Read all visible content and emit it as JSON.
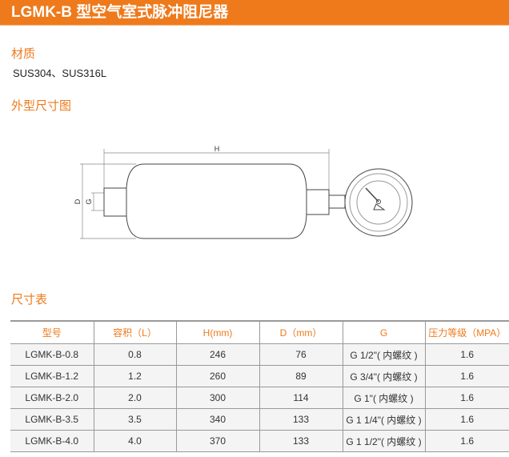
{
  "header": {
    "title": "LGMK-B 型空气室式脉冲阻尼器"
  },
  "material": {
    "heading": "材质",
    "value": "SUS304、SUS316L"
  },
  "drawing": {
    "heading": "外型尺寸图",
    "label_h": "H",
    "label_d": "D",
    "label_g": "G"
  },
  "table": {
    "heading": "尺寸表",
    "columns": [
      "型号",
      "容积（L）",
      "H(mm)",
      "D（mm）",
      "G",
      "压力等级（MPA）"
    ],
    "rows": [
      [
        "LGMK-B-0.8",
        "0.8",
        "246",
        "76",
        "G 1/2\"( 内螺纹 )",
        "1.6"
      ],
      [
        "LGMK-B-1.2",
        "1.2",
        "260",
        "89",
        "G 3/4\"( 内螺纹 )",
        "1.6"
      ],
      [
        "LGMK-B-2.0",
        "2.0",
        "300",
        "114",
        "G 1\"( 内螺纹 )",
        "1.6"
      ],
      [
        "LGMK-B-3.5",
        "3.5",
        "340",
        "133",
        "G 1 1/4\"( 内螺纹 )",
        "1.6"
      ],
      [
        "LGMK-B-4.0",
        "4.0",
        "370",
        "133",
        "G 1 1/2\"( 内螺纹 )",
        "1.6"
      ]
    ]
  },
  "colors": {
    "accent": "#ee7a1c"
  }
}
